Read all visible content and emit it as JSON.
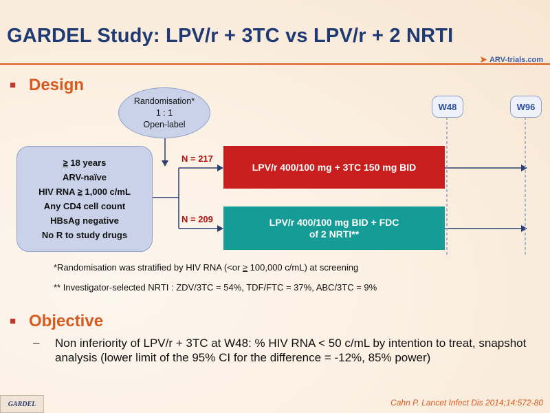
{
  "title": "GARDEL Study: LPV/r + 3TC vs LPV/r + 2 NRTI",
  "logo": {
    "text": "ARV-trials.com"
  },
  "design": {
    "heading": "Design",
    "randomisation": [
      "Randomisation*",
      "1 : 1",
      "Open-label"
    ],
    "criteria": {
      "line1_sym": "≥",
      "line1_rest": " 18 years",
      "line2": "ARV-naïve",
      "line3_pre": "HIV RNA ",
      "line3_sym": "≥",
      "line3_rest": " 1,000 c/mL",
      "line4": "Any CD4 cell count",
      "line5": "HBsAg negative",
      "line6": "No R to study drugs"
    },
    "arms": [
      {
        "n": "N = 217",
        "label": "LPV/r 400/100 mg + 3TC 150 mg BID",
        "color": "#c81e1e"
      },
      {
        "n": "N = 209",
        "label_line1": "LPV/r 400/100 mg BID + FDC",
        "label_line2": "of 2 NRTI**",
        "color": "#169c96"
      }
    ],
    "weeks": [
      "W48",
      "W96"
    ],
    "footnote1_pre": "*Randomisation was stratified by HIV RNA (<or ",
    "footnote1_sym": "≥",
    "footnote1_post": " 100,000 c/mL) at screening",
    "footnote2": "** Investigator-selected NRTI : ZDV/3TC = 54%, TDF/FTC = 37%, ABC/3TC = 9%"
  },
  "objective": {
    "heading": "Objective",
    "dash": "–",
    "text": "Non inferiority of LPV/r + 3TC at W48: % HIV RNA < 50 c/mL by intention to treat, snapshot analysis (lower limit of the 95% CI for the difference = -12%, 85% power)"
  },
  "reference": "Cahn P. Lancet Infect Dis 2014;14:572-80",
  "footer_tag": "GARDEL",
  "colors": {
    "title": "#1f3a73",
    "accent": "#d85a1f",
    "arm1": "#c81e1e",
    "arm2": "#169c96",
    "box": "#c9d2e8"
  }
}
